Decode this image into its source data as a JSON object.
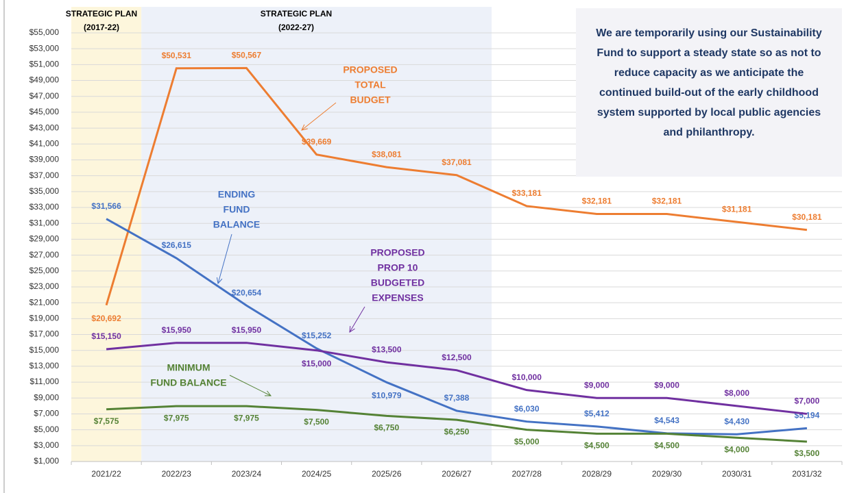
{
  "chart_data": {
    "type": "line",
    "categories": [
      "2021/22",
      "2022/23",
      "2023/24",
      "2024/25",
      "2025/26",
      "2026/27",
      "2027/28",
      "2028/29",
      "2029/30",
      "2030/31",
      "2031/32"
    ],
    "series": [
      {
        "color": "#ed7d31",
        "values": [
          20692,
          50531,
          50567,
          39669,
          38081,
          37081,
          33181,
          32181,
          32181,
          31181,
          30181
        ],
        "value_labels": [
          "$20,692",
          "$50,531",
          "$50,567",
          "$39,669",
          "$38,081",
          "$37,081",
          "$33,181",
          "$32,181",
          "$32,181",
          "$31,181",
          "$30,181"
        ]
      },
      {
        "color": "#4472c4",
        "values": [
          31566,
          26615,
          20654,
          15252,
          10979,
          7388,
          6030,
          5412,
          4543,
          4430,
          5194
        ],
        "value_labels": [
          "$31,566",
          "$26,615",
          "$20,654",
          "$15,252",
          "$10,979",
          "$7,388",
          "$6,030",
          "$5,412",
          "$4,543",
          "$4,430",
          "$5,194"
        ]
      },
      {
        "color": "#7030a0",
        "values": [
          15150,
          15950,
          15950,
          15000,
          13500,
          12500,
          10000,
          9000,
          9000,
          8000,
          7000
        ],
        "value_labels": [
          "$15,150",
          "$15,950",
          "$15,950",
          "$15,000",
          "$13,500",
          "$12,500",
          "$10,000",
          "$9,000",
          "$9,000",
          "$8,000",
          "$7,000"
        ]
      },
      {
        "color": "#548235",
        "values": [
          7575,
          7975,
          7975,
          7500,
          6750,
          6250,
          5000,
          4500,
          4500,
          4000,
          3500
        ],
        "value_labels": [
          "$7,575",
          "$7,975",
          "$7,975",
          "$7,500",
          "$6,750",
          "$6,250",
          "$5,000",
          "$4,500",
          "$4,500",
          "$4,000",
          "$3,500"
        ]
      }
    ],
    "ylim": [
      1000,
      55000
    ],
    "yticks": [
      {
        "value": 1000,
        "label": "$1,000"
      },
      {
        "value": 3000,
        "label": "$3,000"
      },
      {
        "value": 5000,
        "label": "$5,000"
      },
      {
        "value": 7000,
        "label": "$7,000"
      },
      {
        "value": 9000,
        "label": "$9,000"
      },
      {
        "value": 11000,
        "label": "$11,000"
      },
      {
        "value": 13000,
        "label": "$13,000"
      },
      {
        "value": 15000,
        "label": "$15,000"
      },
      {
        "value": 17000,
        "label": "$17,000"
      },
      {
        "value": 19000,
        "label": "$19,000"
      },
      {
        "value": 21000,
        "label": "$21,000"
      },
      {
        "value": 23000,
        "label": "$23,000"
      },
      {
        "value": 25000,
        "label": "$25,000"
      },
      {
        "value": 27000,
        "label": "$27,000"
      },
      {
        "value": 29000,
        "label": "$29,000"
      },
      {
        "value": 31000,
        "label": "$31,000"
      },
      {
        "value": 33000,
        "label": "$33,000"
      },
      {
        "value": 35000,
        "label": "$35,000"
      },
      {
        "value": 37000,
        "label": "$37,000"
      },
      {
        "value": 39000,
        "label": "$39,000"
      },
      {
        "value": 41000,
        "label": "$41,000"
      },
      {
        "value": 43000,
        "label": "$43,000"
      },
      {
        "value": 45000,
        "label": "$45,000"
      },
      {
        "value": 47000,
        "label": "$47,000"
      },
      {
        "value": 49000,
        "label": "$49,000"
      },
      {
        "value": 51000,
        "label": "$51,000"
      },
      {
        "value": 53000,
        "label": "$53,000"
      },
      {
        "value": 55000,
        "label": "$55,000"
      }
    ],
    "grid": true,
    "periods": [
      {
        "lines": [
          "STRATEGIC PLAN",
          "(2017-22)"
        ],
        "color": "#fdf6dc"
      },
      {
        "lines": [
          "STRATEGIC PLAN",
          "(2022-27)"
        ],
        "color": "#edf1f9"
      }
    ],
    "annotations": [
      {
        "lines": [
          "PROPOSED",
          "TOTAL",
          "BUDGET"
        ]
      },
      {
        "lines": [
          "ENDING",
          "FUND",
          "BALANCE"
        ]
      },
      {
        "lines": [
          "PROPOSED",
          "PROP 10",
          "BUDGETED",
          "EXPENSES"
        ]
      },
      {
        "lines": [
          "MINIMUM",
          "FUND BALANCE"
        ]
      }
    ],
    "note": "We are temporarily using our Sustainability Fund to support a steady state so as not to reduce capacity as we anticipate the continued build-out of the early childhood system supported by local public agencies and philanthropy."
  }
}
